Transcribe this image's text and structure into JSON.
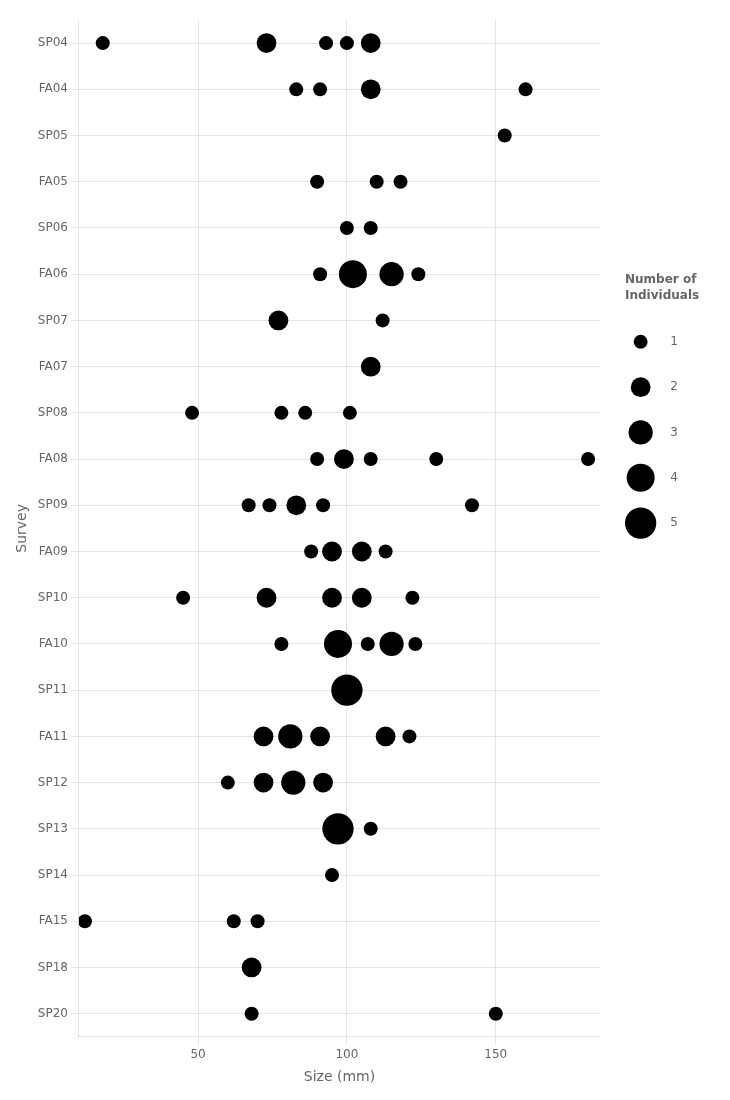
{
  "chart_data": {
    "type": "bubble",
    "xlabel": "Size (mm)",
    "ylabel": "Survey",
    "categories": [
      "SP04",
      "FA04",
      "SP05",
      "FA05",
      "SP06",
      "FA06",
      "SP07",
      "FA07",
      "SP08",
      "FA08",
      "SP09",
      "FA09",
      "SP10",
      "FA10",
      "SP11",
      "FA11",
      "SP12",
      "SP13",
      "SP14",
      "FA15",
      "SP18",
      "SP20"
    ],
    "points": [
      {
        "y": "SP04",
        "x": 18,
        "size": 1
      },
      {
        "y": "SP04",
        "x": 73,
        "size": 2
      },
      {
        "y": "SP04",
        "x": 93,
        "size": 1
      },
      {
        "y": "SP04",
        "x": 100,
        "size": 1
      },
      {
        "y": "SP04",
        "x": 108,
        "size": 2
      },
      {
        "y": "FA04",
        "x": 83,
        "size": 1
      },
      {
        "y": "FA04",
        "x": 91,
        "size": 1
      },
      {
        "y": "FA04",
        "x": 108,
        "size": 2
      },
      {
        "y": "FA04",
        "x": 160,
        "size": 1
      },
      {
        "y": "SP05",
        "x": 153,
        "size": 1
      },
      {
        "y": "FA05",
        "x": 90,
        "size": 1
      },
      {
        "y": "FA05",
        "x": 110,
        "size": 1
      },
      {
        "y": "FA05",
        "x": 118,
        "size": 1
      },
      {
        "y": "SP06",
        "x": 100,
        "size": 1
      },
      {
        "y": "SP06",
        "x": 108,
        "size": 1
      },
      {
        "y": "FA06",
        "x": 91,
        "size": 1
      },
      {
        "y": "FA06",
        "x": 102,
        "size": 4
      },
      {
        "y": "FA06",
        "x": 115,
        "size": 3
      },
      {
        "y": "FA06",
        "x": 124,
        "size": 1
      },
      {
        "y": "SP07",
        "x": 77,
        "size": 2
      },
      {
        "y": "SP07",
        "x": 112,
        "size": 1
      },
      {
        "y": "FA07",
        "x": 108,
        "size": 2
      },
      {
        "y": "SP08",
        "x": 48,
        "size": 1
      },
      {
        "y": "SP08",
        "x": 78,
        "size": 1
      },
      {
        "y": "SP08",
        "x": 86,
        "size": 1
      },
      {
        "y": "SP08",
        "x": 101,
        "size": 1
      },
      {
        "y": "FA08",
        "x": 90,
        "size": 1
      },
      {
        "y": "FA08",
        "x": 99,
        "size": 2
      },
      {
        "y": "FA08",
        "x": 108,
        "size": 1
      },
      {
        "y": "FA08",
        "x": 130,
        "size": 1
      },
      {
        "y": "FA08",
        "x": 181,
        "size": 1
      },
      {
        "y": "SP09",
        "x": 67,
        "size": 1
      },
      {
        "y": "SP09",
        "x": 74,
        "size": 1
      },
      {
        "y": "SP09",
        "x": 83,
        "size": 2
      },
      {
        "y": "SP09",
        "x": 92,
        "size": 1
      },
      {
        "y": "SP09",
        "x": 142,
        "size": 1
      },
      {
        "y": "FA09",
        "x": 88,
        "size": 1
      },
      {
        "y": "FA09",
        "x": 95,
        "size": 2
      },
      {
        "y": "FA09",
        "x": 105,
        "size": 2
      },
      {
        "y": "FA09",
        "x": 113,
        "size": 1
      },
      {
        "y": "SP10",
        "x": 45,
        "size": 1
      },
      {
        "y": "SP10",
        "x": 73,
        "size": 2
      },
      {
        "y": "SP10",
        "x": 95,
        "size": 2
      },
      {
        "y": "SP10",
        "x": 105,
        "size": 2
      },
      {
        "y": "SP10",
        "x": 122,
        "size": 1
      },
      {
        "y": "FA10",
        "x": 78,
        "size": 1
      },
      {
        "y": "FA10",
        "x": 97,
        "size": 4
      },
      {
        "y": "FA10",
        "x": 107,
        "size": 1
      },
      {
        "y": "FA10",
        "x": 115,
        "size": 3
      },
      {
        "y": "FA10",
        "x": 123,
        "size": 1
      },
      {
        "y": "SP11",
        "x": 100,
        "size": 5
      },
      {
        "y": "FA11",
        "x": 72,
        "size": 2
      },
      {
        "y": "FA11",
        "x": 81,
        "size": 3
      },
      {
        "y": "FA11",
        "x": 91,
        "size": 2
      },
      {
        "y": "FA11",
        "x": 113,
        "size": 2
      },
      {
        "y": "FA11",
        "x": 121,
        "size": 1
      },
      {
        "y": "SP12",
        "x": 60,
        "size": 1
      },
      {
        "y": "SP12",
        "x": 72,
        "size": 2
      },
      {
        "y": "SP12",
        "x": 82,
        "size": 3
      },
      {
        "y": "SP12",
        "x": 92,
        "size": 2
      },
      {
        "y": "SP13",
        "x": 97,
        "size": 5
      },
      {
        "y": "SP13",
        "x": 108,
        "size": 1
      },
      {
        "y": "SP14",
        "x": 95,
        "size": 1
      },
      {
        "y": "FA15",
        "x": 12,
        "size": 1
      },
      {
        "y": "FA15",
        "x": 62,
        "size": 1
      },
      {
        "y": "FA15",
        "x": 70,
        "size": 1
      },
      {
        "y": "SP18",
        "x": 68,
        "size": 2
      },
      {
        "y": "SP20",
        "x": 68,
        "size": 1
      },
      {
        "y": "SP20",
        "x": 150,
        "size": 1
      }
    ],
    "color": "#000000",
    "xlim": [
      10,
      185
    ],
    "xticks": [
      50,
      100,
      150
    ],
    "grid": true,
    "legend": "right",
    "legend_title": "Number of\nIndividuals",
    "legend_sizes": [
      1,
      2,
      3,
      4,
      5
    ]
  }
}
